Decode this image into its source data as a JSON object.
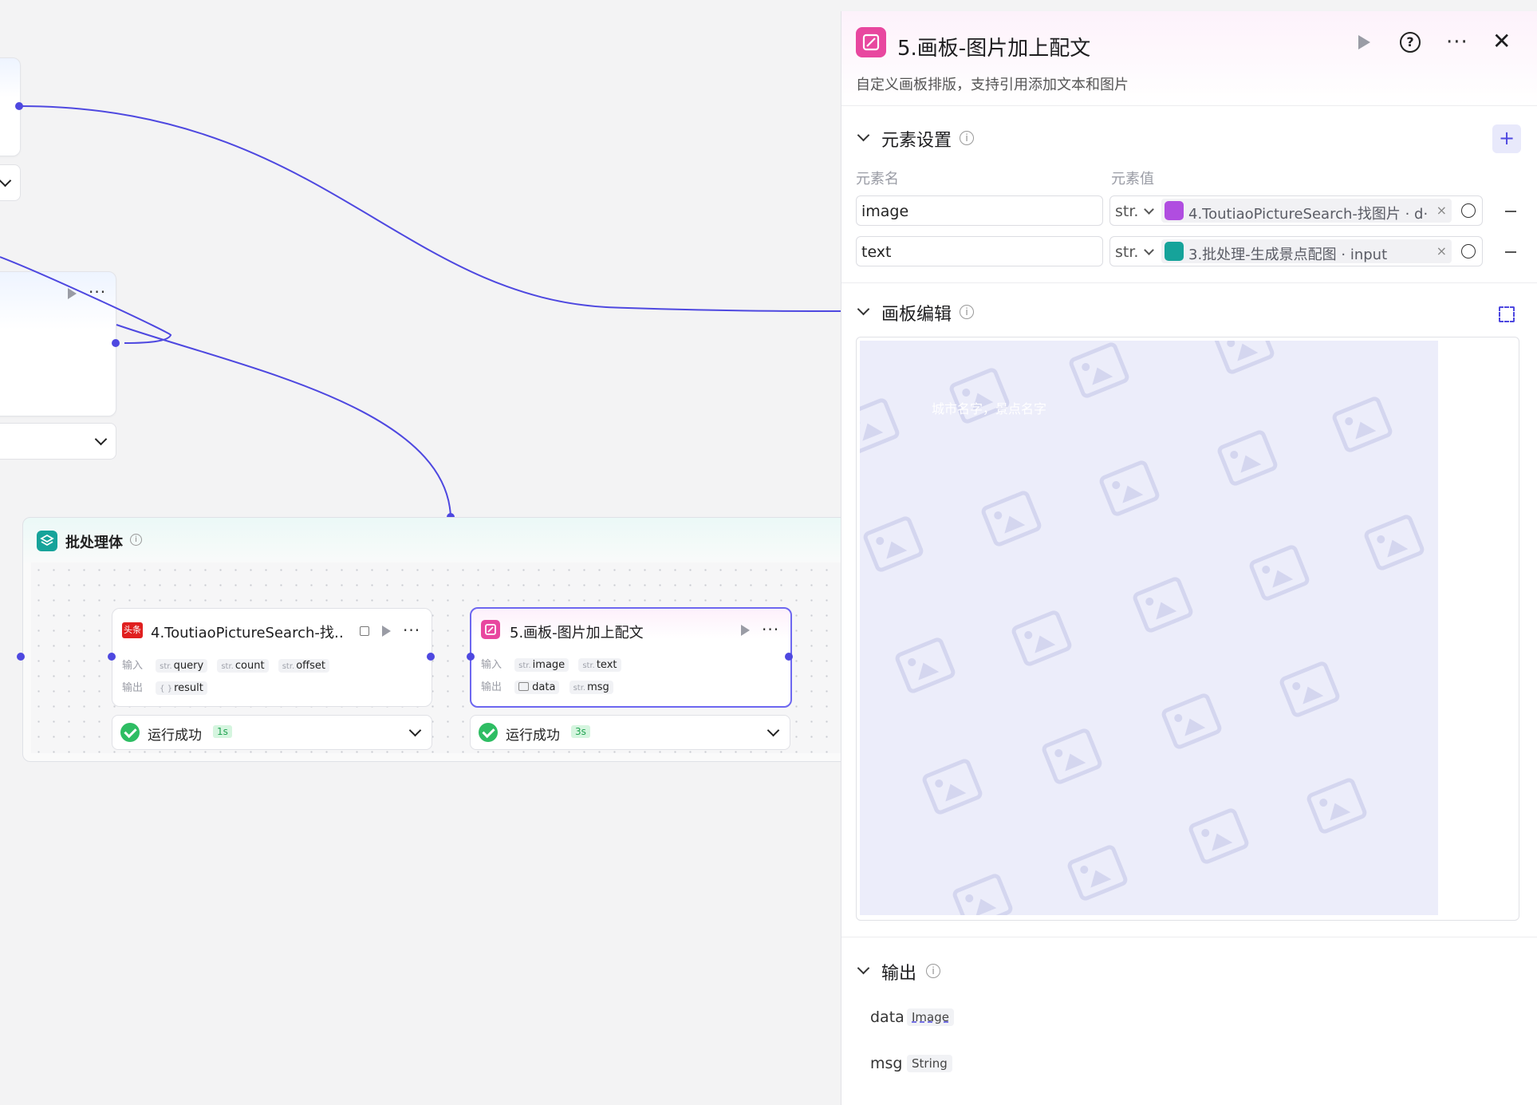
{
  "canvas": {
    "batch": {
      "title": "批处理体",
      "nodes": [
        {
          "title": "4.ToutiaoPictureSearch-找…",
          "icon_text": "头条",
          "input_label": "输入",
          "output_label": "输出",
          "inputs": [
            {
              "type": "str.",
              "name": "query"
            },
            {
              "type": "str.",
              "name": "count"
            },
            {
              "type": "str.",
              "name": "offset"
            }
          ],
          "outputs": [
            {
              "type": "{ }",
              "name": "result"
            }
          ],
          "status": "运行成功",
          "duration": "1s"
        },
        {
          "title": "5.画板-图片加上配文",
          "input_label": "输入",
          "output_label": "输出",
          "inputs": [
            {
              "type": "str.",
              "name": "image"
            },
            {
              "type": "str.",
              "name": "text"
            }
          ],
          "outputs": [
            {
              "type": "image-icon",
              "name": "data"
            },
            {
              "type": "str.",
              "name": "msg"
            }
          ],
          "status": "运行成功",
          "duration": "3s"
        }
      ]
    }
  },
  "panel": {
    "title": "5.画板-图片加上配文",
    "description": "自定义画板排版，支持引用添加文本和图片",
    "element_section": {
      "title": "元素设置",
      "col_name": "元素名",
      "col_value": "元素值",
      "rows": [
        {
          "name": "image",
          "type": "str.",
          "ref": "4.ToutiaoPictureSearch-找图片 · d·",
          "ref_color": "#b04de0"
        },
        {
          "name": "text",
          "type": "str.",
          "ref": "3.批处理-生成景点配图 · input",
          "ref_color": "#16a39a"
        }
      ]
    },
    "board_section": {
      "title": "画板编辑",
      "overlay_text": "城市名字，景点名字"
    },
    "output_section": {
      "title": "输出",
      "fields": [
        {
          "name": "data",
          "type": "Image"
        },
        {
          "name": "msg",
          "type": "String"
        }
      ]
    }
  },
  "colors": {
    "accent": "#4e48e0",
    "canvas_node_icon": "#e8479f",
    "success": "#2ebd63",
    "batch_icon": "#16a39a"
  }
}
